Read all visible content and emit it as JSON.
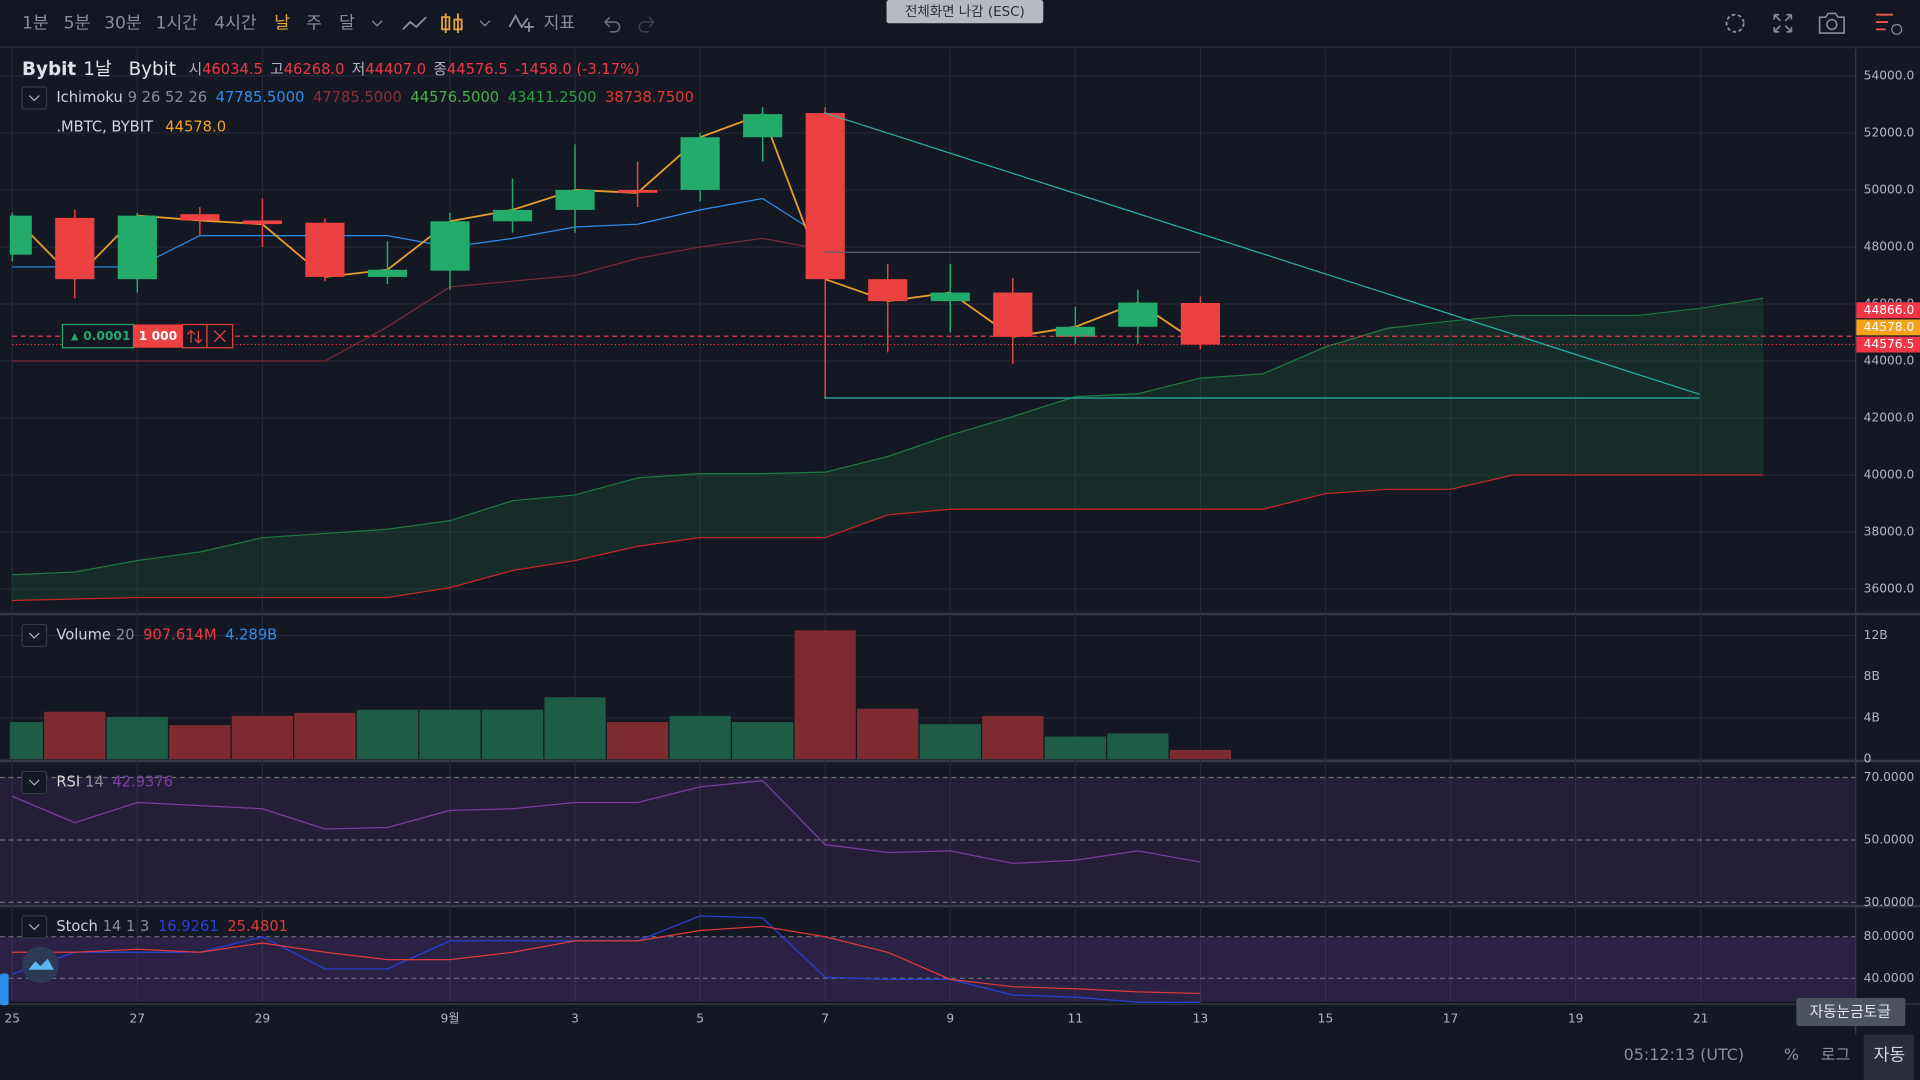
{
  "toolbar": {
    "intervals": [
      "1분",
      "5분",
      "30분",
      "1시간",
      "4시간",
      "날",
      "주",
      "달"
    ],
    "indicators": "지표",
    "fullscreen_exit": "전체화면 나감 (ESC)"
  },
  "header": {
    "exchange": "Bybit",
    "interval": "1날",
    "source": "Bybit",
    "ohlc": [
      {
        "label": "시",
        "value": "46034.5"
      },
      {
        "label": "고",
        "value": "46268.0"
      },
      {
        "label": "저",
        "value": "44407.0"
      },
      {
        "label": "종",
        "value": "44576.5"
      }
    ],
    "change": "-1458.0 (-3.17%)",
    "value_color": "#f23645"
  },
  "compare_legend": {
    "name": ".MBTC, BYBIT",
    "value": "44578.0",
    "color": "#f7a21b"
  },
  "order": {
    "step": "0.0001",
    "qty": "1 000"
  },
  "status": {
    "time": "05:12:13 (UTC)",
    "percent": "%",
    "log": "로그",
    "auto": "자동",
    "tooltip": "자동눈금토글"
  },
  "chart_data": [
    {
      "type": "candlestick",
      "categories": [
        "25",
        null,
        "27",
        null,
        "29",
        null,
        null,
        "9월",
        null,
        "3",
        null,
        "5",
        null,
        "7",
        null,
        "9",
        null,
        "11",
        null,
        "13",
        null,
        "15",
        null,
        "17",
        null,
        "19",
        null,
        "21",
        null
      ],
      "open": [
        47730,
        49020,
        46870,
        49150,
        48930,
        48850,
        46950,
        47170,
        48900,
        49300,
        50000,
        50000,
        51850,
        52700,
        46870,
        46100,
        46400,
        44850,
        45200,
        46034.5,
        null,
        null,
        null,
        null,
        null,
        null,
        null,
        null,
        null
      ],
      "high": [
        49200,
        49300,
        49200,
        49400,
        49700,
        49000,
        48200,
        49200,
        50400,
        51600,
        51000,
        52000,
        52900,
        52900,
        47400,
        47400,
        46900,
        45900,
        46500,
        46268,
        null,
        null,
        null,
        null,
        null,
        null,
        null,
        null,
        null
      ],
      "low": [
        47500,
        46200,
        46400,
        48400,
        48000,
        46800,
        46700,
        46500,
        48500,
        48500,
        49400,
        49600,
        51000,
        42700,
        44300,
        45000,
        43900,
        44600,
        44600,
        44407,
        null,
        null,
        null,
        null,
        null,
        null,
        null,
        null,
        null
      ],
      "close": [
        49100,
        46870,
        49100,
        48930,
        48800,
        46950,
        47200,
        48900,
        49300,
        50000,
        49900,
        51850,
        52660,
        46870,
        46100,
        46400,
        44850,
        45200,
        46050,
        44576.5,
        null,
        null,
        null,
        null,
        null,
        null,
        null,
        null,
        null
      ],
      "up_color": "#22ab6a",
      "down_color": "#ec4141",
      "close_line_color": "#e39c2c",
      "series": [
        {
          "color": "#2d8ef0",
          "values": [
            47300,
            47300,
            47300,
            48400,
            48400,
            48400,
            48400,
            48000,
            48300,
            48700,
            48800,
            49300,
            49700,
            48300,
            null,
            null,
            null,
            null,
            null,
            null,
            null,
            null,
            null,
            null,
            null,
            null,
            null,
            null,
            null
          ]
        },
        {
          "color": "#7a2a33",
          "values": [
            44000,
            44000,
            44000,
            44000,
            44000,
            44000,
            45200,
            46600,
            46800,
            47000,
            47600,
            48000,
            48300,
            47900,
            null,
            null,
            null,
            null,
            null,
            null,
            null,
            null,
            null,
            null,
            null,
            null,
            null,
            null,
            null
          ]
        },
        {
          "color": "#1e7a40",
          "values": [
            36500,
            36600,
            37000,
            37300,
            37800,
            37950,
            38100,
            38400,
            39100,
            39300,
            39900,
            40050,
            40050,
            40100,
            40650,
            41400,
            42050,
            42750,
            42850,
            43400,
            43550,
            44500,
            45150,
            45400,
            45600,
            45600,
            45600,
            45850,
            46200
          ]
        },
        {
          "color": "#c62828",
          "values": [
            35600,
            35650,
            35700,
            35700,
            35700,
            35700,
            35700,
            36050,
            36650,
            37000,
            37500,
            37800,
            37800,
            37800,
            38600,
            38800,
            38800,
            38800,
            38800,
            38800,
            38800,
            39350,
            39500,
            39500,
            40000,
            40000,
            40000,
            40000,
            40000
          ]
        }
      ],
      "cloud_color": "rgba(34,120,64,0.22)",
      "legend": {
        "name": "Ichimoku",
        "params": "9 26 52 26",
        "values": [
          "47785.5000",
          "47785.5000",
          "44576.5000",
          "43411.2500",
          "38738.7500"
        ],
        "colors": [
          "#2d8ef0",
          "#8c2f38",
          "#4caf50",
          "#2f9e44",
          "#e53935"
        ]
      },
      "price_labels": [
        {
          "value": 44866,
          "label": "44866.0",
          "color": "#f23645",
          "style": "dashed"
        },
        {
          "value": 44578,
          "label": "44578.0",
          "color": "#f7a21b",
          "style": "none"
        },
        {
          "value": 44576.5,
          "label": "44576.5",
          "color": "#f23645",
          "style": "dotted"
        }
      ],
      "ylim": [
        35186,
        54945
      ],
      "yticks": [
        {
          "value": 36000,
          "label": "36000.0"
        },
        {
          "value": 38000,
          "label": "38000.0"
        },
        {
          "value": 40000,
          "label": "40000.0"
        },
        {
          "value": 42000,
          "label": "42000.0"
        },
        {
          "value": 44000,
          "label": "44000.0"
        },
        {
          "value": 46000,
          "label": "46000.0"
        },
        {
          "value": 48000,
          "label": "48000.0"
        },
        {
          "value": 50000,
          "label": "50000.0"
        },
        {
          "value": 52000,
          "label": "52000.0"
        },
        {
          "value": 54000,
          "label": "54000.0"
        }
      ],
      "grid": true
    },
    {
      "type": "bar",
      "legend": {
        "name": "Volume",
        "params": "20",
        "values": [
          "907.614M",
          "4.289B"
        ],
        "colors": [
          "#f23645",
          "#2d8ef0"
        ]
      },
      "values": [
        3.6,
        4.6,
        4.1,
        3.3,
        4.2,
        4.5,
        4.8,
        4.8,
        4.8,
        6.0,
        3.6,
        4.2,
        3.6,
        12.5,
        4.9,
        3.4,
        4.2,
        2.2,
        2.5,
        0.9,
        null,
        null,
        null,
        null,
        null,
        null,
        null,
        null,
        null
      ],
      "up_color": "#1d5c45",
      "down_color": "#7d2b31",
      "ylim": [
        0,
        13.9
      ],
      "yticks": [
        0,
        {
          "value": 4,
          "label": "4B"
        },
        {
          "value": 8,
          "label": "8B"
        },
        {
          "value": 12,
          "label": "12B"
        }
      ],
      "grid": true
    },
    {
      "type": "line",
      "legend": {
        "name": "RSI",
        "params": "14"
      },
      "series": [
        {
          "color": "#7b3fa0",
          "values": [
            64,
            55.5,
            62,
            61,
            60,
            53.5,
            54,
            59.5,
            60,
            62,
            62,
            67,
            69,
            48.5,
            46,
            46.5,
            42.5,
            43.5,
            46.5,
            42.9376,
            null,
            null,
            null,
            null,
            null,
            null,
            null,
            null,
            null
          ]
        }
      ],
      "band_color": "rgba(126,70,190,0.15)",
      "ylim": [
        29.2,
        74.7
      ],
      "yticks": [
        {
          "value": 30,
          "label": "30.0000"
        },
        {
          "value": 50,
          "label": "50.0000"
        },
        {
          "value": 70,
          "label": "70.0000"
        }
      ],
      "grid": true
    },
    {
      "type": "line",
      "legend": {
        "name": "Stoch",
        "params": "14 1 3"
      },
      "series": [
        {
          "color": "#2a3fd8",
          "values": [
            44,
            65,
            65,
            65,
            80,
            49,
            49,
            76,
            76,
            76,
            76,
            100,
            98,
            41,
            39,
            39,
            24,
            22,
            17,
            16.9261,
            null,
            null,
            null,
            null,
            null,
            null,
            null,
            null,
            null
          ]
        },
        {
          "color": "#e03a3a",
          "values": [
            65,
            65,
            68,
            65,
            74,
            65,
            58,
            58,
            65,
            76,
            76,
            86,
            90,
            80,
            65,
            39,
            32,
            30,
            27,
            25.4801,
            null,
            null,
            null,
            null,
            null,
            null,
            null,
            null,
            null
          ]
        }
      ],
      "band_color": "rgba(126,70,190,0.22)",
      "ylim": [
        17.6,
        108.2
      ],
      "yticks": [
        {
          "value": 40,
          "label": "40.0000"
        },
        {
          "value": 80,
          "label": "80.0000"
        }
      ],
      "grid": true
    }
  ]
}
